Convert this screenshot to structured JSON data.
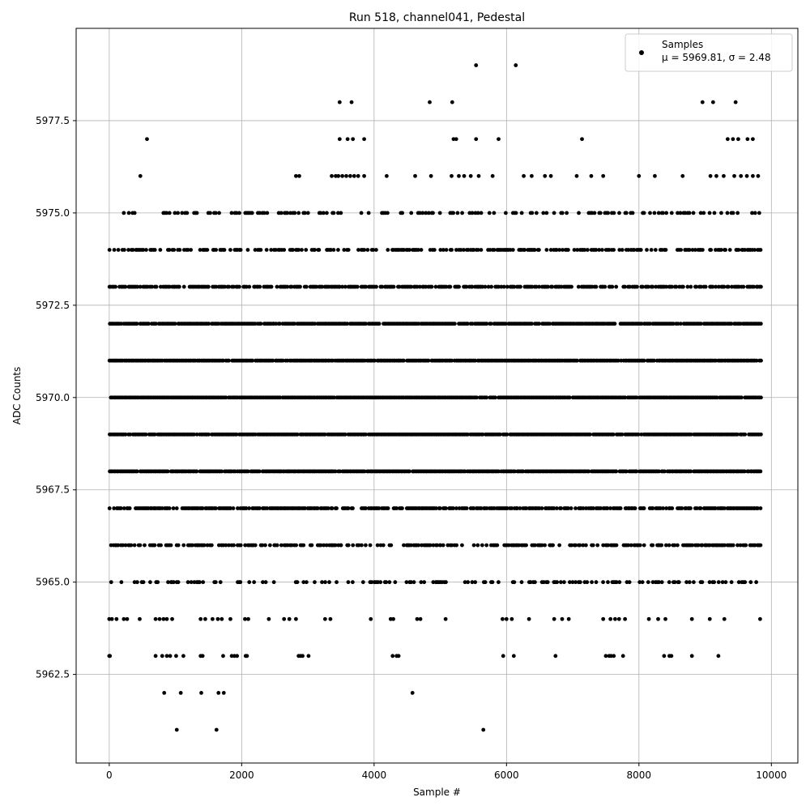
{
  "chart_data": {
    "type": "scatter",
    "title": "Run 518, channel041, Pedestal",
    "xlabel": "Sample #",
    "ylabel": "ADC Counts",
    "xlim": [
      -500,
      10400
    ],
    "ylim": [
      5960.1,
      5980.0
    ],
    "xticks": [
      0,
      2000,
      4000,
      6000,
      8000,
      10000
    ],
    "xtick_labels": [
      "0",
      "2000",
      "4000",
      "6000",
      "8000",
      "10000"
    ],
    "yticks": [
      5962.5,
      5965.0,
      5967.5,
      5970.0,
      5972.5,
      5975.0,
      5977.5
    ],
    "ytick_labels": [
      "5962.5",
      "5965.0",
      "5967.5",
      "5970.0",
      "5972.5",
      "5975.0",
      "5977.5"
    ],
    "grid": true,
    "legend": {
      "position": "top-right",
      "label": "Samples",
      "stats": "μ = 5969.81, σ = 2.48"
    },
    "marker_color": "#000000",
    "series": [
      {
        "name": "Samples",
        "bands": [
          {
            "y": 5961,
            "x": [
              1020,
              1620,
              5650
            ]
          },
          {
            "y": 5962,
            "x": [
              830,
              1080,
              1390,
              1650,
              1730,
              4580
            ]
          },
          {
            "y": 5963,
            "x": [
              0,
              10,
              700,
              800,
              870,
              920,
              1010,
              1120,
              1380,
              1410,
              1720,
              1850,
              1890,
              1930,
              2060,
              2080,
              2860,
              2890,
              2920,
              3010,
              4280,
              4340,
              4370,
              5950,
              6110,
              6740,
              7500,
              7550,
              7580,
              7620,
              7760,
              8380,
              8460,
              8490,
              8800,
              9200
            ]
          },
          {
            "y": 5966,
            "x": [
              3500,
              4100,
              4500,
              5000,
              5800,
              6700,
              7500,
              8300,
              9000,
              9400,
              9800
            ]
          },
          {
            "y": 5964,
            "x": [
              0,
              40,
              110,
              220,
              270,
              460,
              700,
              760,
              820,
              870,
              950,
              1380,
              1450,
              1560,
              1640,
              1700,
              1830,
              2050,
              2100,
              2410,
              2640,
              2720,
              2820,
              3260,
              3340,
              3950,
              4250,
              4290,
              4650,
              4700,
              5080,
              5940,
              6000,
              6080,
              6340,
              6720,
              6840,
              6940,
              7460,
              7570,
              7640,
              7700,
              7790,
              8150,
              8290,
              8400,
              8800,
              9070,
              9290,
              9830
            ]
          },
          {
            "y": 5976,
            "x": [
              470,
              2820,
              2870,
              3360,
              3420,
              3460,
              3520,
              3580,
              3640,
              3700,
              3760,
              3850,
              4190,
              4620,
              4860,
              5170,
              5280,
              5360,
              5460,
              5580,
              5790,
              6260,
              6380,
              6580,
              6670,
              7060,
              7280,
              7460,
              8000,
              8240,
              8660,
              9080,
              9170,
              9280,
              9440,
              9540,
              9630,
              9720,
              9800
            ]
          },
          {
            "y": 5977,
            "x": [
              570,
              3480,
              3600,
              3680,
              3850,
              5200,
              5240,
              5540,
              5880,
              7140,
              9340,
              9420,
              9500,
              9640,
              9720
            ]
          },
          {
            "y": 5978,
            "x": [
              3480,
              3660,
              4840,
              5180,
              8960,
              9120,
              9460
            ]
          },
          {
            "y": 5979,
            "x": [
              5540,
              6140
            ]
          }
        ]
      }
    ]
  }
}
